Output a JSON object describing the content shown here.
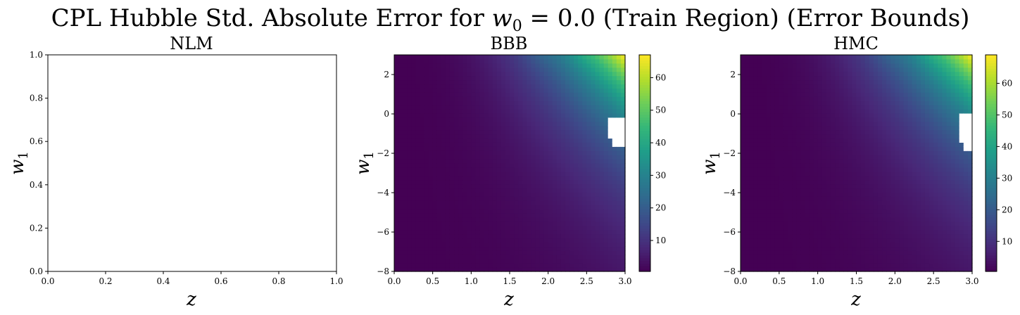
{
  "figure": {
    "title_prefix": "CPL Hubble Std. Absolute Error for ",
    "title_math_w": "w",
    "title_math_sub": "0",
    "title_math_rest": " = 0.0",
    "title_suffix": " (Train Region) (Error Bounds)"
  },
  "colors": {
    "viridis": [
      "#440154",
      "#482878",
      "#3e4989",
      "#31688e",
      "#26828e",
      "#1f9e89",
      "#35b779",
      "#6ece58",
      "#b5de2b",
      "#fde725"
    ],
    "axis": "#000000",
    "nan": "#ffffff"
  },
  "chart_data": [
    {
      "type": "heatmap",
      "title": "NLM",
      "xlabel": "z",
      "ylabel_base": "w",
      "ylabel_sub": "1",
      "xlim": [
        0.0,
        1.0
      ],
      "ylim": [
        0.0,
        1.0
      ],
      "xticks": [
        "0.0",
        "0.2",
        "0.4",
        "0.6",
        "0.8",
        "1.0"
      ],
      "yticks": [
        "0.0",
        "0.2",
        "0.4",
        "0.6",
        "0.8",
        "1.0"
      ],
      "data": "empty"
    },
    {
      "type": "heatmap",
      "title": "BBB",
      "xlabel": "z",
      "ylabel_base": "w",
      "ylabel_sub": "1",
      "xlim": [
        0.0,
        3.0
      ],
      "ylim": [
        -8,
        3
      ],
      "xticks": [
        "0.0",
        "0.5",
        "1.0",
        "1.5",
        "2.0",
        "2.5",
        "3.0"
      ],
      "yticks": [
        "−8",
        "−6",
        "−4",
        "−2",
        "0",
        "2"
      ],
      "colorbar": {
        "min": 0.5,
        "max": 67,
        "ticks": [
          "10",
          "20",
          "30",
          "40",
          "50",
          "60"
        ]
      },
      "max_value": 67,
      "nan_region": "approx z 2.75–3.0, w1 −1.9 to −0.2 (blank cells)"
    },
    {
      "type": "heatmap",
      "title": "HMC",
      "xlabel": "z",
      "ylabel_base": "w",
      "ylabel_sub": "1",
      "xlim": [
        0.0,
        3.0
      ],
      "ylim": [
        -8,
        3
      ],
      "xticks": [
        "0.0",
        "0.5",
        "1.0",
        "1.5",
        "2.0",
        "2.5",
        "3.0"
      ],
      "yticks": [
        "−8",
        "−6",
        "−4",
        "−2",
        "0",
        "2"
      ],
      "colorbar": {
        "min": 0.5,
        "max": 69,
        "ticks": [
          "10",
          "20",
          "30",
          "40",
          "50",
          "60"
        ]
      },
      "max_value": 69,
      "nan_region": "approx z 2.8–3.0, w1 −2.1 to 0.1 (blank cells)"
    }
  ]
}
